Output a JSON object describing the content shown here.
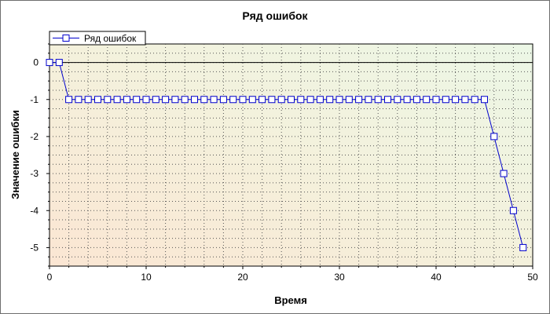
{
  "chart_data": {
    "type": "line",
    "title": "Ряд ошибок",
    "xlabel": "Время",
    "ylabel": "Значение ошибки",
    "xlim": [
      0,
      50
    ],
    "ylim": [
      -5.5,
      0.5
    ],
    "xticks": [
      0,
      10,
      20,
      30,
      40,
      50
    ],
    "yticks": [
      0,
      -1,
      -2,
      -3,
      -4,
      -5
    ],
    "grid": true,
    "legend_position": "top-left",
    "series": [
      {
        "name": "Ряд ошибок",
        "color": "#0000cc",
        "marker": "square",
        "x": [
          0,
          1,
          2,
          3,
          4,
          5,
          6,
          7,
          8,
          9,
          10,
          11,
          12,
          13,
          14,
          15,
          16,
          17,
          18,
          19,
          20,
          21,
          22,
          23,
          24,
          25,
          26,
          27,
          28,
          29,
          30,
          31,
          32,
          33,
          34,
          35,
          36,
          37,
          38,
          39,
          40,
          41,
          42,
          43,
          44,
          45,
          46,
          47,
          48,
          49
        ],
        "y": [
          0,
          0,
          -1,
          -1,
          -1,
          -1,
          -1,
          -1,
          -1,
          -1,
          -1,
          -1,
          -1,
          -1,
          -1,
          -1,
          -1,
          -1,
          -1,
          -1,
          -1,
          -1,
          -1,
          -1,
          -1,
          -1,
          -1,
          -1,
          -1,
          -1,
          -1,
          -1,
          -1,
          -1,
          -1,
          -1,
          -1,
          -1,
          -1,
          -1,
          -1,
          -1,
          -1,
          -1,
          -1,
          -1,
          -2,
          -3,
          -4,
          -5
        ]
      }
    ]
  }
}
